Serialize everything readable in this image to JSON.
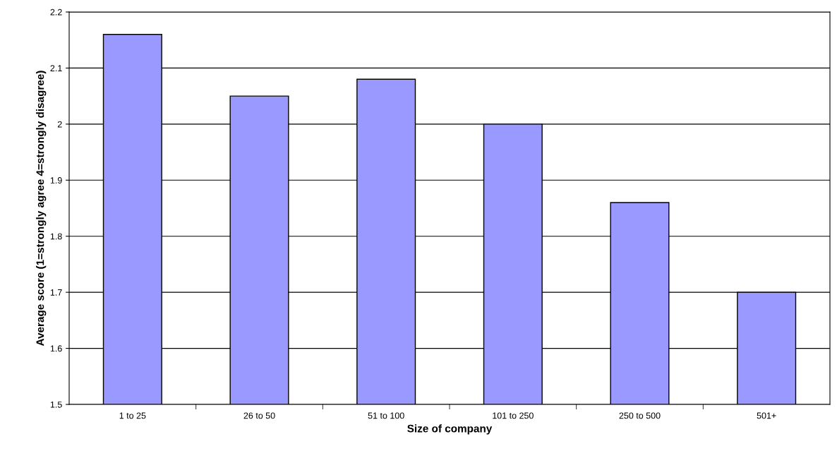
{
  "chart_data": {
    "type": "bar",
    "xlabel": "Size of company",
    "ylabel": "Average score (1=strongly agree 4=strongly disagree)",
    "categories": [
      "1 to 25",
      "26 to 50",
      "51 to 100",
      "101 to 250",
      "250 to 500",
      "501+"
    ],
    "values": [
      2.16,
      2.05,
      2.08,
      2.0,
      1.86,
      1.7
    ],
    "color": "#9999ff",
    "ylim": [
      1.5,
      2.2
    ],
    "yticks": [
      1.5,
      1.6,
      1.7,
      1.8,
      1.9,
      2,
      2.1,
      2.2
    ],
    "grid": "y"
  }
}
